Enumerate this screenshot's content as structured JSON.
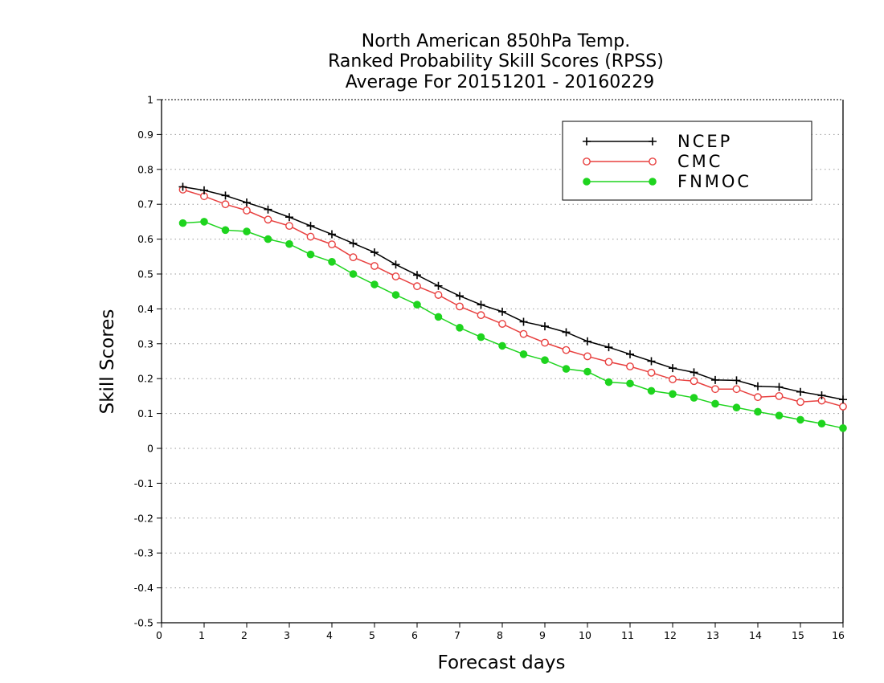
{
  "chart_data": {
    "type": "line",
    "title_lines": [
      "North American 850hPa Temp.",
      "Ranked Probability Skill Scores (RPSS)",
      "Average For 20151201 - 20160229"
    ],
    "xlabel": "Forecast days",
    "ylabel": "Skill Scores",
    "xlim": [
      0,
      16
    ],
    "ylim": [
      -0.5,
      1
    ],
    "x_ticks": [
      0,
      1,
      2,
      3,
      4,
      5,
      6,
      7,
      8,
      9,
      10,
      11,
      12,
      13,
      14,
      15,
      16
    ],
    "x_tick_labels": [
      "0",
      "1",
      "2",
      "3",
      "4",
      "5",
      "6",
      "7",
      "8",
      "9",
      "10",
      "11",
      "12",
      "13",
      "14",
      "15",
      "16"
    ],
    "y_ticks": [
      -0.5,
      -0.4,
      -0.3,
      -0.2,
      -0.1,
      0,
      0.1,
      0.2,
      0.3,
      0.4,
      0.5,
      0.6,
      0.7,
      0.8,
      0.9,
      1
    ],
    "y_tick_labels": [
      "-0.5",
      "-0.4",
      "-0.3",
      "-0.2",
      "-0.1",
      "0",
      "0.1",
      "0.2",
      "0.3",
      "0.4",
      "0.5",
      "0.6",
      "0.7",
      "0.8",
      "0.9",
      "1"
    ],
    "grid": "horizontal-dotted",
    "legend_position": "top-right",
    "x": [
      0.5,
      1,
      1.5,
      2,
      2.5,
      3,
      3.5,
      4,
      4.5,
      5,
      5.5,
      6,
      6.5,
      7,
      7.5,
      8,
      8.5,
      9,
      9.5,
      10,
      10.5,
      11,
      11.5,
      12,
      12.5,
      13,
      13.5,
      14,
      14.5,
      15,
      15.5,
      16
    ],
    "series": [
      {
        "name": "NCEP",
        "color": "#000000",
        "marker": "plus",
        "values": [
          0.75,
          0.74,
          0.725,
          0.705,
          0.685,
          0.663,
          0.638,
          0.614,
          0.588,
          0.562,
          0.527,
          0.497,
          0.466,
          0.437,
          0.412,
          0.392,
          0.363,
          0.35,
          0.333,
          0.307,
          0.29,
          0.27,
          0.25,
          0.23,
          0.218,
          0.196,
          0.195,
          0.178,
          0.176,
          0.162,
          0.152,
          0.14
        ]
      },
      {
        "name": "CMC",
        "color": "#e8403f",
        "marker": "open-circle",
        "values": [
          0.742,
          0.723,
          0.7,
          0.682,
          0.656,
          0.638,
          0.607,
          0.585,
          0.548,
          0.523,
          0.493,
          0.465,
          0.44,
          0.407,
          0.382,
          0.357,
          0.328,
          0.303,
          0.282,
          0.264,
          0.248,
          0.235,
          0.217,
          0.198,
          0.193,
          0.17,
          0.17,
          0.147,
          0.15,
          0.133,
          0.137,
          0.12
        ]
      },
      {
        "name": "FNMOC",
        "color": "#1ed41e",
        "marker": "filled-circle",
        "values": [
          0.646,
          0.65,
          0.626,
          0.622,
          0.6,
          0.586,
          0.556,
          0.535,
          0.5,
          0.47,
          0.44,
          0.412,
          0.377,
          0.346,
          0.319,
          0.294,
          0.27,
          0.253,
          0.228,
          0.22,
          0.19,
          0.186,
          0.165,
          0.156,
          0.145,
          0.128,
          0.117,
          0.105,
          0.094,
          0.082,
          0.071,
          0.058
        ]
      }
    ]
  }
}
